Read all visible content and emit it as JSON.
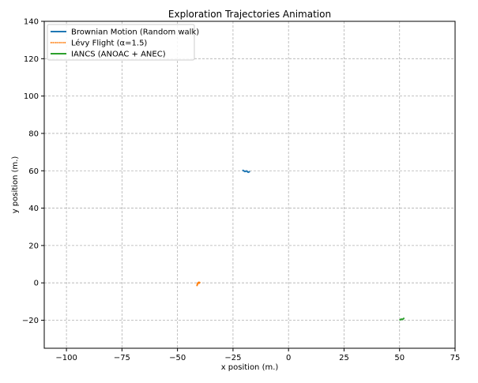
{
  "chart_data": {
    "type": "line",
    "title": "Exploration Trajectories Animation",
    "xlabel": "x position (m.)",
    "ylabel": "y position (m.)",
    "xlim": [
      -110,
      75
    ],
    "ylim": [
      -35,
      140
    ],
    "x_ticks": [
      -100,
      -75,
      -50,
      -25,
      0,
      25,
      50,
      75
    ],
    "y_ticks": [
      -20,
      0,
      20,
      40,
      60,
      80,
      100,
      120,
      140
    ],
    "x_tick_labels": [
      "−100",
      "−75",
      "−50",
      "−25",
      "0",
      "25",
      "50",
      "75"
    ],
    "y_tick_labels": [
      "−20",
      "0",
      "20",
      "40",
      "60",
      "80",
      "100",
      "120",
      "140"
    ],
    "grid": true,
    "legend_position": "top-left",
    "series": [
      {
        "name": "Brownian Motion (Random walk)",
        "color": "#1f77b4",
        "x": [
          -20.5,
          -19.6,
          -18.9,
          -18.2,
          -17.6
        ],
        "y": [
          60.2,
          59.6,
          59.9,
          59.2,
          59.5
        ]
      },
      {
        "name": "Lévy Flight (α=1.5)",
        "color": "#ff7f0e",
        "x": [
          -41.2,
          -41.0,
          -40.8,
          -40.4,
          -40.0,
          -40.3
        ],
        "y": [
          -1.4,
          -0.6,
          0.0,
          0.3,
          0.2,
          -0.2
        ]
      },
      {
        "name": "IANCS (ANOAC + ANEC)",
        "color": "#2ca02c",
        "x": [
          50.2,
          50.7,
          51.3,
          51.9
        ],
        "y": [
          -19.8,
          -19.4,
          -19.6,
          -19.0
        ]
      }
    ]
  }
}
